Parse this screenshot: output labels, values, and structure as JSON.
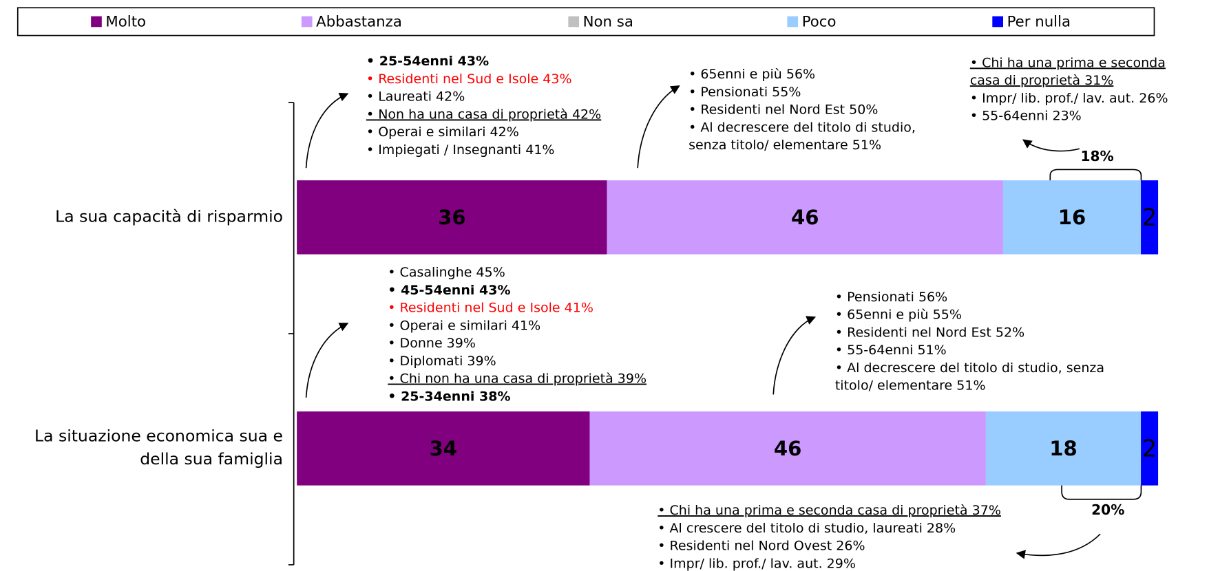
{
  "chart_data": {
    "type": "stacked-bar-horizontal",
    "categories": [
      "La sua capacità di risparmio",
      "La situazione economica sua e della sua famiglia"
    ],
    "category_lines": [
      [
        "La sua capacità di risparmio"
      ],
      [
        "La situazione economica sua e",
        "della sua famiglia"
      ]
    ],
    "xlim": [
      0,
      100
    ],
    "series": [
      {
        "name": "Molto",
        "color": "#800080",
        "label_color": "#ffffff",
        "values": [
          36,
          34
        ]
      },
      {
        "name": "Abbastanza",
        "color": "#cc99ff",
        "label_color": "#000000",
        "values": [
          46,
          46
        ]
      },
      {
        "name": "Non sa",
        "color": "#c0c0c0",
        "label_color": "#000000",
        "values": [
          0,
          0
        ]
      },
      {
        "name": "Poco",
        "color": "#99ccff",
        "label_color": "#000000",
        "values": [
          16,
          18
        ]
      },
      {
        "name": "Per nulla",
        "color": "#0000ff",
        "label_color": "#ffffff",
        "values": [
          2,
          2
        ]
      }
    ],
    "bracket_labels": [
      {
        "value": 18,
        "label": "18%"
      },
      {
        "value": 20,
        "label": "20%"
      }
    ],
    "annotations": [
      {
        "lines": [
          {
            "text": "• 25-54enni 43%",
            "style": "bold"
          },
          {
            "text": "• Residenti nel Sud e Isole 43%",
            "style": "red"
          },
          {
            "text": "• Laureati 42%",
            "style": "normal"
          },
          {
            "text": "• Non ha una casa di proprietà 42%",
            "style": "underline"
          },
          {
            "text": "• Operai e similari 42%",
            "style": "normal"
          },
          {
            "text": "• Impiegati / Insegnanti 41%",
            "style": "normal"
          }
        ]
      },
      {
        "lines": [
          {
            "text": "• 65enni e più 56%",
            "style": "normal"
          },
          {
            "text": "• Pensionati 55%",
            "style": "normal"
          },
          {
            "text": "• Residenti nel Nord Est 50%",
            "style": "normal"
          },
          {
            "text": "• Al decrescere del titolo di studio,",
            "style": "normal"
          },
          {
            "text": "senza titolo/ elementare 51%",
            "style": "normal"
          }
        ]
      },
      {
        "lines": [
          {
            "text": "• Chi ha una prima e seconda",
            "style": "underline"
          },
          {
            "text": "casa di proprietà 31%",
            "style": "underline"
          },
          {
            "text": "• Impr/ lib. prof./ lav. aut. 26%",
            "style": "normal"
          },
          {
            "text": "• 55-64enni 23%",
            "style": "normal"
          }
        ]
      },
      {
        "lines": [
          {
            "text": "• Casalinghe 45%",
            "style": "normal"
          },
          {
            "text": "• 45-54enni 43%",
            "style": "bold"
          },
          {
            "text": "• Residenti nel Sud e Isole 41%",
            "style": "red"
          },
          {
            "text": "• Operai e similari 41%",
            "style": "normal"
          },
          {
            "text": "• Donne 39%",
            "style": "normal"
          },
          {
            "text": "• Diplomati 39%",
            "style": "normal"
          },
          {
            "text": "• Chi non ha una casa di proprietà 39%",
            "style": "underline"
          },
          {
            "text": "• 25-34enni 38%",
            "style": "bold"
          }
        ]
      },
      {
        "lines": [
          {
            "text": "• Pensionati 56%",
            "style": "normal"
          },
          {
            "text": "• 65enni e più 55%",
            "style": "normal"
          },
          {
            "text": "• Residenti nel Nord Est 52%",
            "style": "normal"
          },
          {
            "text": "• 55-64enni 51%",
            "style": "normal"
          },
          {
            "text": "• Al decrescere del titolo di studio, senza",
            "style": "normal"
          },
          {
            "text": "titolo/ elementare 51%",
            "style": "normal"
          }
        ]
      },
      {
        "lines": [
          {
            "text": "• Chi ha una prima e seconda casa di proprietà 37%",
            "style": "underline"
          },
          {
            "text": "• Al crescere del titolo di studio, laureati 28%",
            "style": "normal"
          },
          {
            "text": "• Residenti nel Nord Ovest 26%",
            "style": "normal"
          },
          {
            "text": "• Impr/ lib. prof./ lav. aut. 29%",
            "style": "normal"
          }
        ]
      }
    ]
  }
}
